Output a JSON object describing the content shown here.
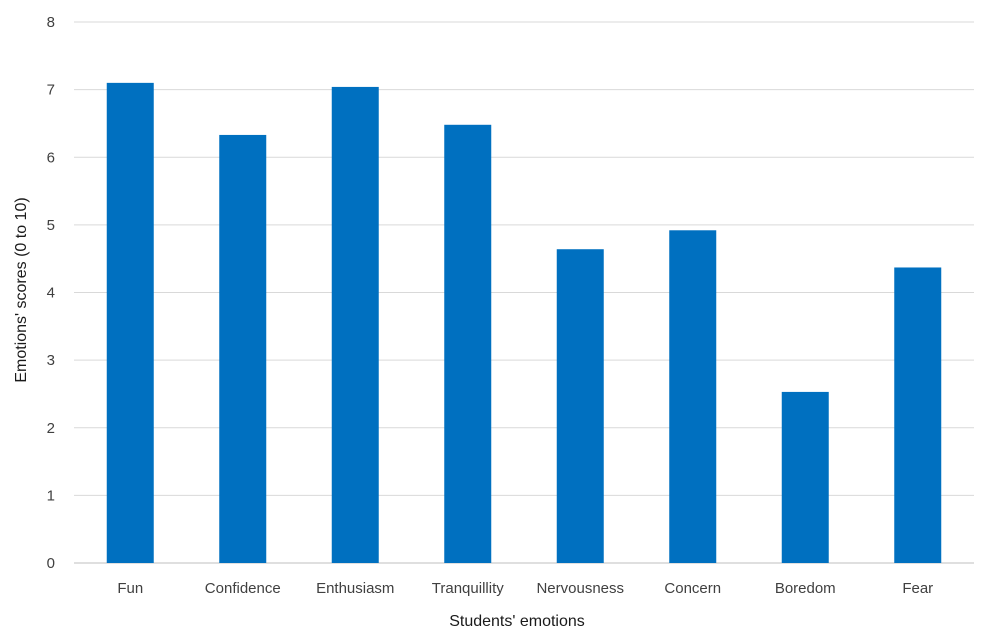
{
  "colors": {
    "bar": "#0070c0",
    "gridline": "#d9d9d9",
    "axis_line": "#bfbfbf",
    "text": "#404040"
  },
  "chart_data": {
    "type": "bar",
    "title": "",
    "xlabel": "Students' emotions",
    "ylabel": "Emotions' scores (0 to 10)",
    "ylim": [
      0,
      8
    ],
    "yticks": [
      0,
      1,
      2,
      3,
      4,
      5,
      6,
      7,
      8
    ],
    "grid": true,
    "legend": "none",
    "categories": [
      "Fun",
      "Confidence",
      "Enthusiasm",
      "Tranquillity",
      "Nervousness",
      "Concern",
      "Boredom",
      "Fear"
    ],
    "values": [
      7.1,
      6.33,
      7.04,
      6.48,
      4.64,
      4.92,
      2.53,
      4.37
    ]
  }
}
